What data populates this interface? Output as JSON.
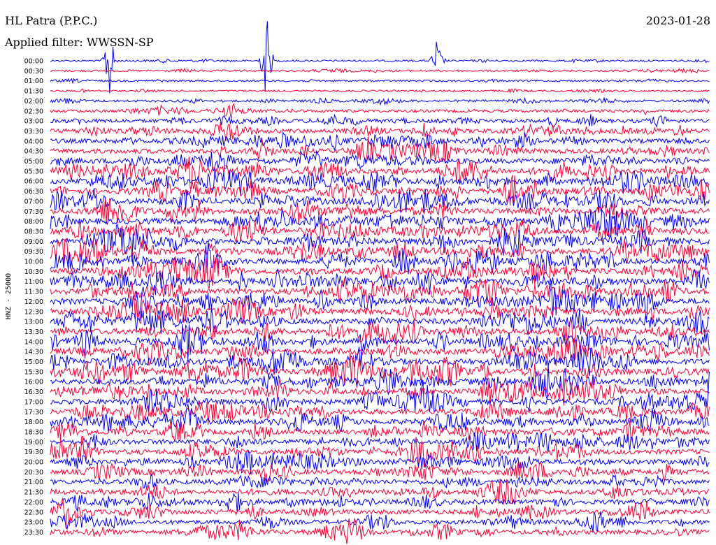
{
  "header": {
    "station": "HL Patra (P.P.C.)",
    "date": "2023-01-28",
    "filter": "Applied filter: WWSSN-SP"
  },
  "chart_data": {
    "type": "line",
    "title": "HL Patra (P.P.C.)",
    "ylabel": "HNZ - 25000",
    "y_tick_labels": [
      "00:00",
      "00:30",
      "01:00",
      "01:30",
      "02:00",
      "02:30",
      "03:00",
      "03:30",
      "04:00",
      "04:30",
      "05:00",
      "05:30",
      "06:00",
      "06:30",
      "07:00",
      "07:30",
      "08:00",
      "08:30",
      "09:00",
      "09:30",
      "10:00",
      "10:30",
      "11:00",
      "11:30",
      "12:00",
      "12:30",
      "13:00",
      "13:30",
      "14:00",
      "14:30",
      "15:00",
      "15:30",
      "16:00",
      "16:30",
      "17:00",
      "17:30",
      "18:00",
      "18:30",
      "19:00",
      "19:30",
      "20:00",
      "20:30",
      "21:00",
      "21:30",
      "22:00",
      "22:30",
      "23:00",
      "23:30"
    ],
    "trace_colors": [
      "#0000ff",
      "#ff0033"
    ],
    "activity_by_trace": [
      0.15,
      0.2,
      0.15,
      0.15,
      0.25,
      0.4,
      0.6,
      0.7,
      0.75,
      0.8,
      0.85,
      0.9,
      0.95,
      1.0,
      1.0,
      1.0,
      1.0,
      1.0,
      1.0,
      1.0,
      1.0,
      1.0,
      1.0,
      1.0,
      1.0,
      1.0,
      1.0,
      1.0,
      1.0,
      1.0,
      1.0,
      1.0,
      1.0,
      0.95,
      0.95,
      0.9,
      0.9,
      0.9,
      0.85,
      0.85,
      0.8,
      0.8,
      0.8,
      0.75,
      0.75,
      0.75,
      0.7,
      0.7
    ]
  }
}
